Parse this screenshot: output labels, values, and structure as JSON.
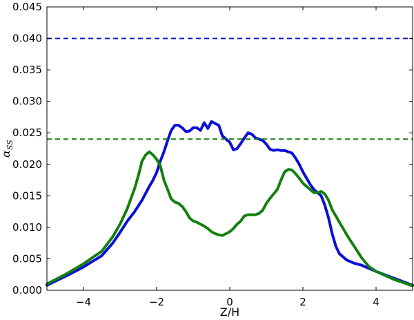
{
  "chart_data": {
    "type": "line",
    "xlabel": "Z/H",
    "ylabel_main": "α",
    "ylabel_sub": "SS",
    "xlim": [
      -5,
      5
    ],
    "ylim": [
      0,
      0.045
    ],
    "xticks": [
      -4,
      -2,
      0,
      2,
      4
    ],
    "xtick_labels": [
      "−4",
      "−2",
      "0",
      "2",
      "4"
    ],
    "yticks": [
      0,
      0.005,
      0.01,
      0.015,
      0.02,
      0.025,
      0.03,
      0.035,
      0.04,
      0.045
    ],
    "ytick_labels": [
      "0.000",
      "0.005",
      "0.010",
      "0.015",
      "0.020",
      "0.025",
      "0.030",
      "0.035",
      "0.040",
      "0.045"
    ],
    "grid": false,
    "colors": {
      "blue": "#0a10d6",
      "green": "#13800f"
    },
    "series": [
      {
        "color": "#0a10d6",
        "style": "solid",
        "x": [
          -5.0,
          -4.5,
          -4.0,
          -3.5,
          -3.2,
          -3.0,
          -2.8,
          -2.6,
          -2.4,
          -2.2,
          -2.1,
          -2.0,
          -1.9,
          -1.8,
          -1.7,
          -1.6,
          -1.5,
          -1.4,
          -1.3,
          -1.2,
          -1.1,
          -1.0,
          -0.9,
          -0.8,
          -0.7,
          -0.6,
          -0.5,
          -0.4,
          -0.3,
          -0.2,
          -0.1,
          0.0,
          0.1,
          0.2,
          0.3,
          0.4,
          0.5,
          0.6,
          0.7,
          0.8,
          0.9,
          1.0,
          1.1,
          1.2,
          1.3,
          1.4,
          1.5,
          1.6,
          1.7,
          1.8,
          1.9,
          2.0,
          2.1,
          2.2,
          2.3,
          2.4,
          2.5,
          2.6,
          2.7,
          2.8,
          2.9,
          3.0,
          3.2,
          3.4,
          3.6,
          3.8,
          4.0,
          4.5,
          5.0
        ],
        "y": [
          0.0008,
          0.0022,
          0.0037,
          0.0055,
          0.0075,
          0.0092,
          0.011,
          0.0125,
          0.0143,
          0.0165,
          0.0175,
          0.0187,
          0.0205,
          0.022,
          0.0238,
          0.0254,
          0.0262,
          0.0262,
          0.0258,
          0.0252,
          0.0253,
          0.0258,
          0.0258,
          0.0254,
          0.0266,
          0.0257,
          0.0268,
          0.0265,
          0.0262,
          0.0245,
          0.024,
          0.0235,
          0.0223,
          0.0225,
          0.0233,
          0.0242,
          0.025,
          0.0248,
          0.0242,
          0.024,
          0.0238,
          0.0232,
          0.0224,
          0.0222,
          0.0223,
          0.0222,
          0.0222,
          0.022,
          0.0218,
          0.021,
          0.02,
          0.0188,
          0.0178,
          0.0168,
          0.016,
          0.0155,
          0.015,
          0.0135,
          0.0115,
          0.009,
          0.007,
          0.0058,
          0.0048,
          0.0043,
          0.004,
          0.0035,
          0.003,
          0.0019,
          0.0008
        ]
      },
      {
        "color": "#13800f",
        "style": "solid",
        "x": [
          -5.0,
          -4.5,
          -4.0,
          -3.5,
          -3.2,
          -3.0,
          -2.8,
          -2.6,
          -2.5,
          -2.4,
          -2.3,
          -2.2,
          -2.1,
          -2.0,
          -1.9,
          -1.8,
          -1.7,
          -1.6,
          -1.5,
          -1.4,
          -1.3,
          -1.2,
          -1.1,
          -1.0,
          -0.9,
          -0.8,
          -0.7,
          -0.6,
          -0.5,
          -0.4,
          -0.3,
          -0.2,
          -0.1,
          0.0,
          0.1,
          0.2,
          0.3,
          0.4,
          0.5,
          0.6,
          0.7,
          0.8,
          0.9,
          1.0,
          1.1,
          1.2,
          1.3,
          1.4,
          1.5,
          1.6,
          1.7,
          1.8,
          1.9,
          2.0,
          2.1,
          2.2,
          2.3,
          2.4,
          2.5,
          2.6,
          2.7,
          2.8,
          2.9,
          3.0,
          3.2,
          3.4,
          3.6,
          3.8,
          4.0,
          4.5,
          5.0
        ],
        "y": [
          0.001,
          0.0025,
          0.0042,
          0.0062,
          0.0085,
          0.0105,
          0.013,
          0.0162,
          0.0182,
          0.0205,
          0.0215,
          0.022,
          0.0215,
          0.0208,
          0.0198,
          0.0175,
          0.016,
          0.0145,
          0.014,
          0.0138,
          0.0133,
          0.0125,
          0.0115,
          0.011,
          0.0108,
          0.0105,
          0.0102,
          0.0098,
          0.0093,
          0.009,
          0.0088,
          0.0087,
          0.009,
          0.0093,
          0.0098,
          0.0105,
          0.011,
          0.0118,
          0.012,
          0.012,
          0.012,
          0.0122,
          0.0127,
          0.0138,
          0.0146,
          0.0153,
          0.016,
          0.0175,
          0.0188,
          0.0192,
          0.0191,
          0.0185,
          0.0178,
          0.017,
          0.0165,
          0.016,
          0.0155,
          0.0155,
          0.0157,
          0.0153,
          0.0143,
          0.0128,
          0.0118,
          0.0108,
          0.0088,
          0.007,
          0.0052,
          0.0038,
          0.003,
          0.0017,
          0.0007
        ]
      },
      {
        "color": "#0a10d6",
        "style": "dashed",
        "x": [
          -5,
          5
        ],
        "y": [
          0.04,
          0.04
        ]
      },
      {
        "color": "#13800f",
        "style": "dashed",
        "x": [
          -5,
          5
        ],
        "y": [
          0.024,
          0.024
        ]
      }
    ]
  }
}
